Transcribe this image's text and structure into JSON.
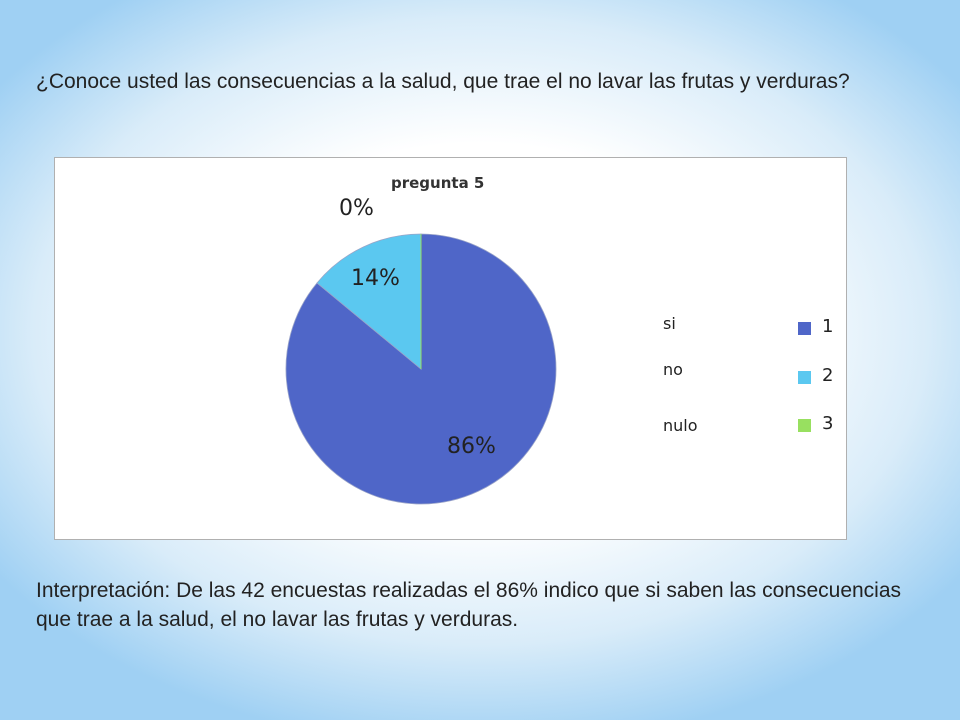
{
  "question": "¿Conoce usted las consecuencias a la salud, que trae el no lavar las frutas y verduras?",
  "chart_data": {
    "type": "pie",
    "title": "pregunta 5",
    "categories": [
      "si",
      "no",
      "nulo"
    ],
    "values": [
      86,
      14,
      0
    ],
    "data_labels": [
      "86%",
      "14%",
      "0%"
    ],
    "legend": [
      "1",
      "2",
      "3"
    ],
    "legend_position": "right",
    "colors": [
      "#4f66c8",
      "#5bc8f0",
      "#98e060"
    ]
  },
  "interpretation": "Interpretación: De las 42 encuestas realizadas el 86% indico que si saben las consecuencias que trae a la salud, el  no lavar las frutas y verduras."
}
